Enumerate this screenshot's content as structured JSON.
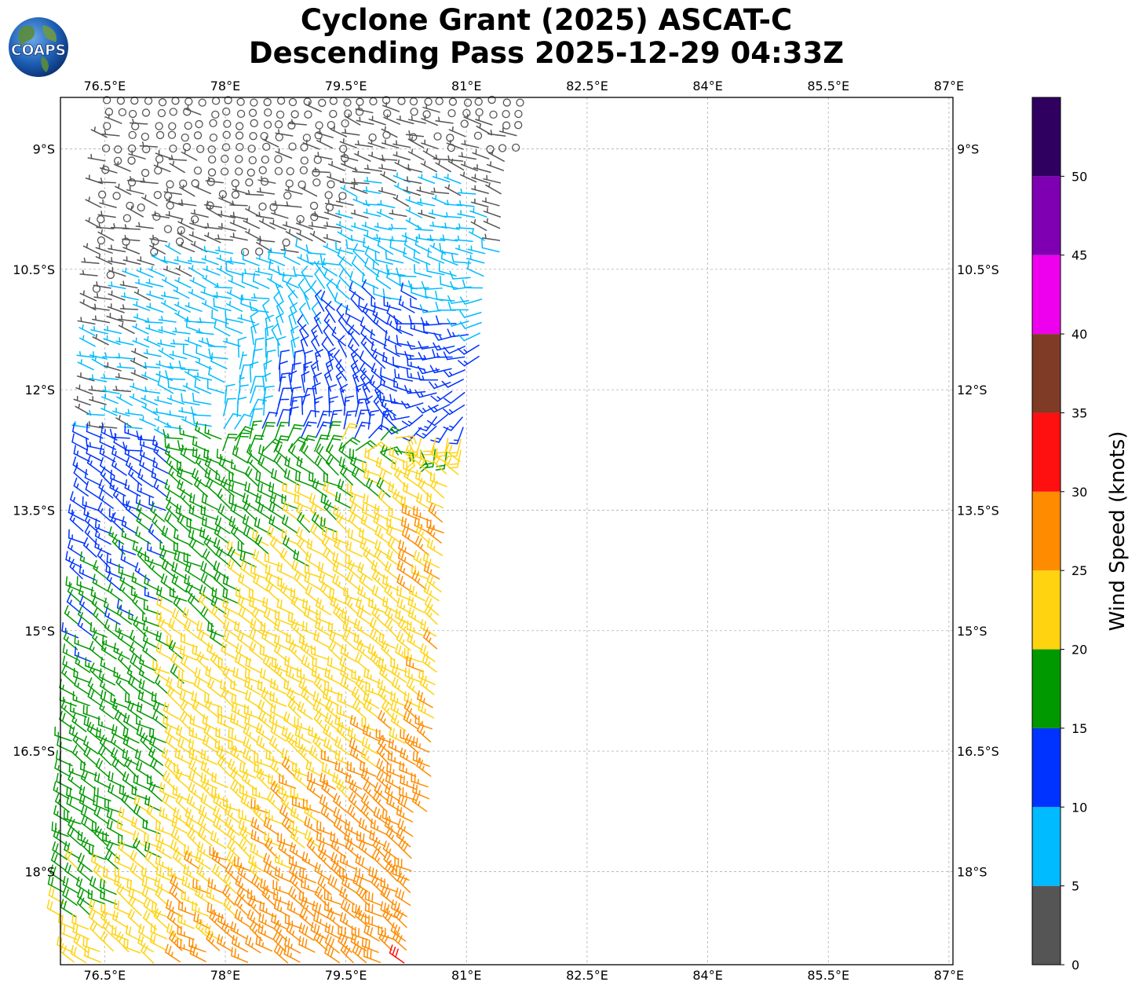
{
  "title": {
    "line1": "Cyclone Grant (2025) ASCAT-C",
    "line2": "Descending Pass 2025-12-29 04:33Z"
  },
  "logo": {
    "text": "COAPS",
    "icon": "globe-icon"
  },
  "map": {
    "lon_range": [
      75.95,
      87.05
    ],
    "lat_range": [
      -19.16,
      -8.36
    ],
    "lon_ticks": [
      "76.5°E",
      "78°E",
      "79.5°E",
      "81°E",
      "82.5°E",
      "84°E",
      "85.5°E",
      "87°E"
    ],
    "lon_tick_values": [
      76.5,
      78,
      79.5,
      81,
      82.5,
      84,
      85.5,
      87
    ],
    "lat_ticks": [
      "9°S",
      "10.5°S",
      "12°S",
      "13.5°S",
      "15°S",
      "16.5°S",
      "18°S"
    ],
    "lat_tick_values": [
      -9,
      -10.5,
      -12,
      -13.5,
      -15,
      -16.5,
      -18
    ],
    "grid": true,
    "grid_style": "dashed"
  },
  "colorbar": {
    "label": "Wind Speed (knots)",
    "ticks": [
      "0",
      "5",
      "10",
      "15",
      "20",
      "25",
      "30",
      "35",
      "40",
      "45",
      "50"
    ],
    "bins": [
      {
        "from": 0,
        "to": 5,
        "color": "#555555"
      },
      {
        "from": 5,
        "to": 10,
        "color": "#00bbff"
      },
      {
        "from": 10,
        "to": 15,
        "color": "#0033ff"
      },
      {
        "from": 15,
        "to": 20,
        "color": "#009900"
      },
      {
        "from": 20,
        "to": 25,
        "color": "#ffd310"
      },
      {
        "from": 25,
        "to": 30,
        "color": "#ff8c00"
      },
      {
        "from": 30,
        "to": 35,
        "color": "#ff1010"
      },
      {
        "from": 35,
        "to": 40,
        "color": "#803b26"
      },
      {
        "from": 40,
        "to": 45,
        "color": "#ee00ee"
      },
      {
        "from": 45,
        "to": 50,
        "color": "#7f00b3"
      },
      {
        "from": 50,
        "to": 55,
        "color": "#300060"
      }
    ],
    "max": 55
  },
  "swath": {
    "lat_top": -8.36,
    "lat_bottom": -19.16,
    "west_lon_top": 76.55,
    "west_lon_bottom": 75.95,
    "east_lon_top": 81.75,
    "east_lon_mid": 80.85,
    "east_lon_mid_lat": -13.4,
    "east_lon_bottom": 80.35,
    "cyclone_center": [
      80.15,
      -12.55
    ]
  }
}
